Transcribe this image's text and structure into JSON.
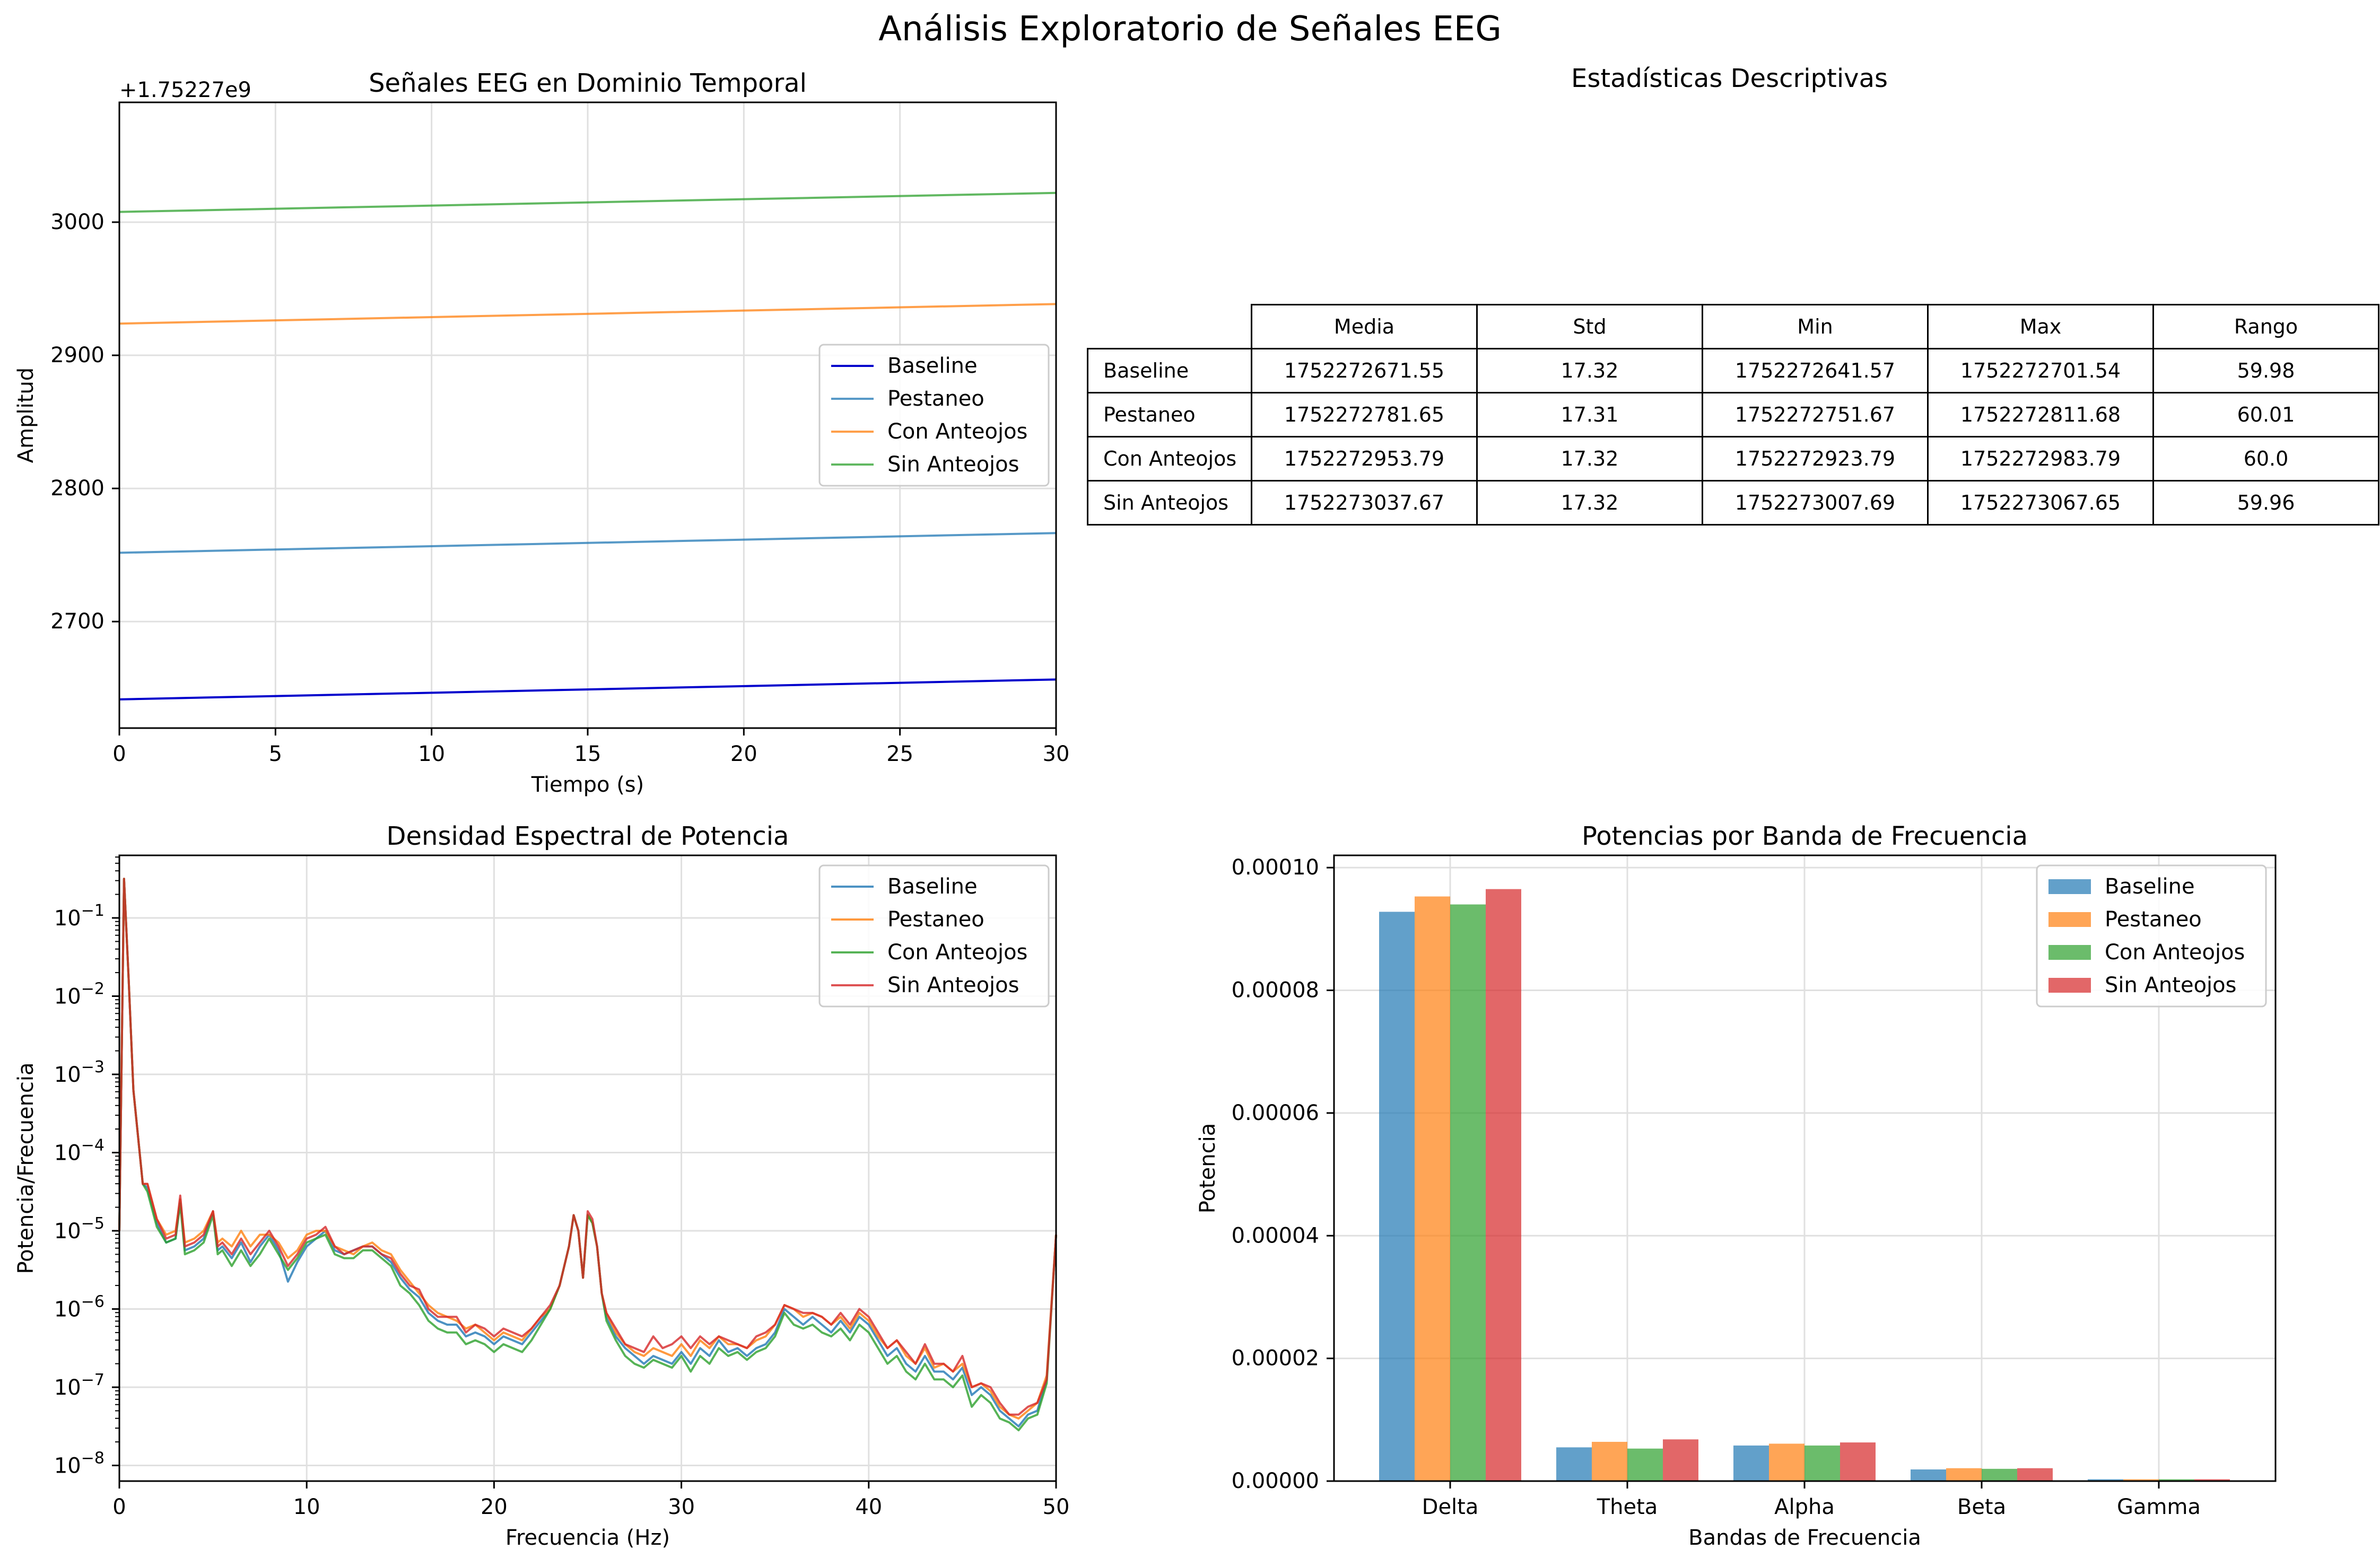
{
  "suptitle": "Análisis Exploratorio de Señales EEG",
  "colors": {
    "baseline_time": "#0000cc",
    "blue": "#1f77b4",
    "orange": "#ff7f0e",
    "green": "#2ca02c",
    "red": "#d62728",
    "grid": "#e0e0e0"
  },
  "chart_data": [
    {
      "type": "line",
      "title": "Señales EEG en Dominio Temporal",
      "xlabel": "Tiempo (s)",
      "ylabel": "Amplitud",
      "offset_label": "+1.75227e9",
      "xlim": [
        0,
        30
      ],
      "ylim": [
        2620,
        3090
      ],
      "xticks": [
        0,
        5,
        10,
        15,
        20,
        25,
        30
      ],
      "yticks": [
        2700,
        2800,
        2900,
        3000
      ],
      "grid": true,
      "legend_position": "center-right",
      "series": [
        {
          "name": "Baseline",
          "color": "#0000cc",
          "x": [
            0,
            30
          ],
          "y": [
            2641.57,
            2656.5
          ]
        },
        {
          "name": "Pestaneo",
          "color": "#1f77b4",
          "x": [
            0,
            30
          ],
          "y": [
            2751.67,
            2766.5
          ]
        },
        {
          "name": "Con Anteojos",
          "color": "#ff7f0e",
          "x": [
            0,
            30
          ],
          "y": [
            2923.79,
            2938.5
          ]
        },
        {
          "name": "Sin Anteojos",
          "color": "#2ca02c",
          "x": [
            0,
            30
          ],
          "y": [
            3007.69,
            3022.0
          ]
        }
      ]
    },
    {
      "type": "table",
      "title": "Estadísticas Descriptivas",
      "columns": [
        "Media",
        "Std",
        "Min",
        "Max",
        "Rango"
      ],
      "rows": [
        {
          "label": "Baseline",
          "values": [
            "1752272671.55",
            "17.32",
            "1752272641.57",
            "1752272701.54",
            "59.98"
          ]
        },
        {
          "label": "Pestaneo",
          "values": [
            "1752272781.65",
            "17.31",
            "1752272751.67",
            "1752272811.68",
            "60.01"
          ]
        },
        {
          "label": "Con Anteojos",
          "values": [
            "1752272953.79",
            "17.32",
            "1752272923.79",
            "1752272983.79",
            "60.0"
          ]
        },
        {
          "label": "Sin Anteojos",
          "values": [
            "1752273037.67",
            "17.32",
            "1752273007.69",
            "1752273067.65",
            "59.96"
          ]
        }
      ]
    },
    {
      "type": "line",
      "title": "Densidad Espectral de Potencia",
      "xlabel": "Frecuencia (Hz)",
      "ylabel": "Potencia/Frecuencia",
      "yscale": "log",
      "xlim": [
        0,
        50
      ],
      "ylim_exp": [
        -8.2,
        -0.2
      ],
      "xticks": [
        0,
        10,
        20,
        30,
        40,
        50
      ],
      "yticks_exp": [
        -1,
        -2,
        -3,
        -4,
        -5,
        -6,
        -7,
        -8
      ],
      "grid": true,
      "legend_position": "upper-right",
      "shared_x": [
        0,
        0.25,
        0.5,
        0.75,
        1,
        1.25,
        1.5,
        2,
        2.5,
        3,
        3.25,
        3.5,
        4,
        4.5,
        5,
        5.25,
        5.5,
        6,
        6.5,
        7,
        7.5,
        8,
        8.5,
        9,
        9.5,
        10,
        10.5,
        11,
        11.5,
        12,
        12.5,
        13,
        13.5,
        14,
        14.5,
        15,
        15.5,
        16,
        16.5,
        17,
        17.5,
        18,
        18.5,
        19,
        19.5,
        20,
        20.5,
        21,
        21.5,
        22,
        22.5,
        23,
        23.5,
        24,
        24.25,
        24.5,
        24.75,
        25,
        25.25,
        25.5,
        25.75,
        26,
        26.5,
        27,
        27.5,
        28,
        28.5,
        29,
        29.5,
        30,
        30.5,
        31,
        31.5,
        32,
        32.5,
        33,
        33.5,
        34,
        34.5,
        35,
        35.5,
        36,
        36.5,
        37,
        37.5,
        38,
        38.5,
        39,
        39.5,
        40,
        40.5,
        41,
        41.5,
        42,
        42.5,
        43,
        43.5,
        44,
        44.5,
        45,
        45.5,
        46,
        46.5,
        47,
        47.5,
        48,
        48.5,
        49,
        49.5,
        50
      ],
      "series": [
        {
          "name": "Baseline",
          "color": "#1f77b4",
          "log10_y": [
            -5.0,
            -0.5,
            -1.8,
            -3.2,
            -3.8,
            -4.4,
            -4.45,
            -4.9,
            -5.15,
            -5.1,
            -4.6,
            -5.25,
            -5.2,
            -5.1,
            -4.75,
            -5.25,
            -5.2,
            -5.35,
            -5.15,
            -5.4,
            -5.2,
            -5.05,
            -5.25,
            -5.65,
            -5.4,
            -5.2,
            -5.1,
            -5.0,
            -5.25,
            -5.3,
            -5.25,
            -5.2,
            -5.2,
            -5.3,
            -5.4,
            -5.6,
            -5.75,
            -5.85,
            -6.05,
            -6.15,
            -6.2,
            -6.2,
            -6.35,
            -6.3,
            -6.35,
            -6.45,
            -6.35,
            -6.4,
            -6.45,
            -6.3,
            -6.15,
            -6.0,
            -5.7,
            -5.2,
            -4.8,
            -5.0,
            -5.6,
            -4.8,
            -4.9,
            -5.2,
            -5.8,
            -6.1,
            -6.35,
            -6.5,
            -6.6,
            -6.7,
            -6.6,
            -6.65,
            -6.7,
            -6.55,
            -6.7,
            -6.5,
            -6.6,
            -6.4,
            -6.55,
            -6.5,
            -6.6,
            -6.5,
            -6.45,
            -6.3,
            -6.0,
            -6.1,
            -6.2,
            -6.1,
            -6.2,
            -6.3,
            -6.15,
            -6.3,
            -6.1,
            -6.2,
            -6.4,
            -6.6,
            -6.5,
            -6.7,
            -6.8,
            -6.6,
            -6.8,
            -6.8,
            -6.9,
            -6.75,
            -7.1,
            -7.0,
            -7.1,
            -7.3,
            -7.4,
            -7.5,
            -7.35,
            -7.3,
            -6.9,
            -5.05
          ]
        },
        {
          "name": "Pestaneo",
          "color": "#ff7f0e",
          "log10_y": [
            -5.0,
            -0.5,
            -1.8,
            -3.2,
            -3.8,
            -4.4,
            -4.4,
            -4.85,
            -5.05,
            -5.0,
            -4.6,
            -5.15,
            -5.1,
            -5.0,
            -4.75,
            -5.15,
            -5.1,
            -5.2,
            -5.0,
            -5.2,
            -5.05,
            -5.05,
            -5.15,
            -5.35,
            -5.25,
            -5.05,
            -5.0,
            -5.0,
            -5.2,
            -5.25,
            -5.3,
            -5.2,
            -5.15,
            -5.25,
            -5.3,
            -5.5,
            -5.65,
            -5.8,
            -5.95,
            -6.05,
            -6.1,
            -6.15,
            -6.25,
            -6.2,
            -6.3,
            -6.4,
            -6.3,
            -6.35,
            -6.4,
            -6.25,
            -6.1,
            -6.0,
            -5.7,
            -5.2,
            -4.8,
            -5.0,
            -5.6,
            -4.8,
            -4.9,
            -5.2,
            -5.8,
            -6.05,
            -6.3,
            -6.45,
            -6.55,
            -6.6,
            -6.5,
            -6.55,
            -6.6,
            -6.45,
            -6.6,
            -6.4,
            -6.5,
            -6.35,
            -6.45,
            -6.45,
            -6.5,
            -6.4,
            -6.35,
            -6.2,
            -5.95,
            -6.0,
            -6.1,
            -6.05,
            -6.1,
            -6.2,
            -6.1,
            -6.25,
            -6.05,
            -6.15,
            -6.35,
            -6.5,
            -6.4,
            -6.6,
            -6.7,
            -6.5,
            -6.75,
            -6.7,
            -6.8,
            -6.7,
            -7.0,
            -6.95,
            -7.05,
            -7.25,
            -7.35,
            -7.4,
            -7.3,
            -7.2,
            -6.85,
            -5.05
          ]
        },
        {
          "name": "Con Anteojos",
          "color": "#2ca02c",
          "log10_y": [
            -5.0,
            -0.5,
            -1.8,
            -3.2,
            -3.8,
            -4.4,
            -4.5,
            -4.95,
            -5.15,
            -5.1,
            -4.65,
            -5.3,
            -5.25,
            -5.15,
            -4.8,
            -5.3,
            -5.25,
            -5.45,
            -5.25,
            -5.45,
            -5.3,
            -5.1,
            -5.3,
            -5.5,
            -5.35,
            -5.15,
            -5.1,
            -5.05,
            -5.3,
            -5.35,
            -5.35,
            -5.25,
            -5.25,
            -5.35,
            -5.45,
            -5.7,
            -5.8,
            -5.95,
            -6.15,
            -6.25,
            -6.3,
            -6.3,
            -6.45,
            -6.4,
            -6.45,
            -6.55,
            -6.45,
            -6.5,
            -6.55,
            -6.4,
            -6.2,
            -6.0,
            -5.7,
            -5.2,
            -4.8,
            -5.0,
            -5.6,
            -4.8,
            -4.9,
            -5.2,
            -5.8,
            -6.15,
            -6.4,
            -6.6,
            -6.7,
            -6.75,
            -6.65,
            -6.7,
            -6.75,
            -6.6,
            -6.8,
            -6.6,
            -6.7,
            -6.5,
            -6.6,
            -6.55,
            -6.65,
            -6.55,
            -6.5,
            -6.35,
            -6.05,
            -6.2,
            -6.25,
            -6.2,
            -6.3,
            -6.35,
            -6.25,
            -6.4,
            -6.2,
            -6.3,
            -6.5,
            -6.7,
            -6.6,
            -6.8,
            -6.9,
            -6.7,
            -6.9,
            -6.9,
            -7.0,
            -6.85,
            -7.25,
            -7.1,
            -7.2,
            -7.4,
            -7.45,
            -7.55,
            -7.4,
            -7.35,
            -6.95,
            -5.05
          ]
        },
        {
          "name": "Sin Anteojos",
          "color": "#d62728",
          "log10_y": [
            -5.0,
            -0.5,
            -1.8,
            -3.2,
            -3.8,
            -4.4,
            -4.4,
            -4.85,
            -5.1,
            -5.05,
            -4.55,
            -5.2,
            -5.15,
            -5.05,
            -4.75,
            -5.2,
            -5.15,
            -5.3,
            -5.1,
            -5.3,
            -5.15,
            -5.0,
            -5.2,
            -5.45,
            -5.3,
            -5.1,
            -5.05,
            -4.95,
            -5.2,
            -5.3,
            -5.25,
            -5.2,
            -5.2,
            -5.3,
            -5.35,
            -5.55,
            -5.7,
            -5.75,
            -6.0,
            -6.1,
            -6.1,
            -6.1,
            -6.3,
            -6.2,
            -6.25,
            -6.35,
            -6.25,
            -6.3,
            -6.35,
            -6.25,
            -6.1,
            -5.95,
            -5.7,
            -5.2,
            -4.8,
            -5.0,
            -5.6,
            -4.75,
            -4.85,
            -5.2,
            -5.8,
            -6.05,
            -6.25,
            -6.45,
            -6.5,
            -6.55,
            -6.35,
            -6.5,
            -6.45,
            -6.35,
            -6.5,
            -6.35,
            -6.45,
            -6.35,
            -6.4,
            -6.45,
            -6.5,
            -6.35,
            -6.3,
            -6.2,
            -5.95,
            -6.0,
            -6.05,
            -6.05,
            -6.1,
            -6.2,
            -6.05,
            -6.2,
            -6.0,
            -6.1,
            -6.3,
            -6.5,
            -6.4,
            -6.55,
            -6.7,
            -6.45,
            -6.7,
            -6.7,
            -6.8,
            -6.6,
            -7.0,
            -6.95,
            -7.0,
            -7.2,
            -7.35,
            -7.35,
            -7.25,
            -7.2,
            -6.9,
            -5.05
          ]
        }
      ]
    },
    {
      "type": "bar",
      "title": "Potencias por Banda de Frecuencia",
      "xlabel": "Bandas de Frecuencia",
      "ylabel": "Potencia",
      "categories": [
        "Delta",
        "Theta",
        "Alpha",
        "Beta",
        "Gamma"
      ],
      "ylim": [
        0,
        0.000102
      ],
      "yticks": [
        "0.00000",
        "0.00002",
        "0.00004",
        "0.00006",
        "0.00008",
        "0.00010"
      ],
      "grid": true,
      "legend_position": "upper-right",
      "series": [
        {
          "name": "Baseline",
          "color": "#1f77b4",
          "values": [
            9.28e-05,
            5.5e-06,
            5.8e-06,
            1.9e-06,
            3e-07
          ]
        },
        {
          "name": "Pestaneo",
          "color": "#ff7f0e",
          "values": [
            9.53e-05,
            6.4e-06,
            6.1e-06,
            2.1e-06,
            3e-07
          ]
        },
        {
          "name": "Con Anteojos",
          "color": "#2ca02c",
          "values": [
            9.4e-05,
            5.3e-06,
            5.8e-06,
            2e-06,
            3e-07
          ]
        },
        {
          "name": "Sin Anteojos",
          "color": "#d62728",
          "values": [
            9.65e-05,
            6.8e-06,
            6.3e-06,
            2.1e-06,
            3e-07
          ]
        }
      ]
    }
  ]
}
